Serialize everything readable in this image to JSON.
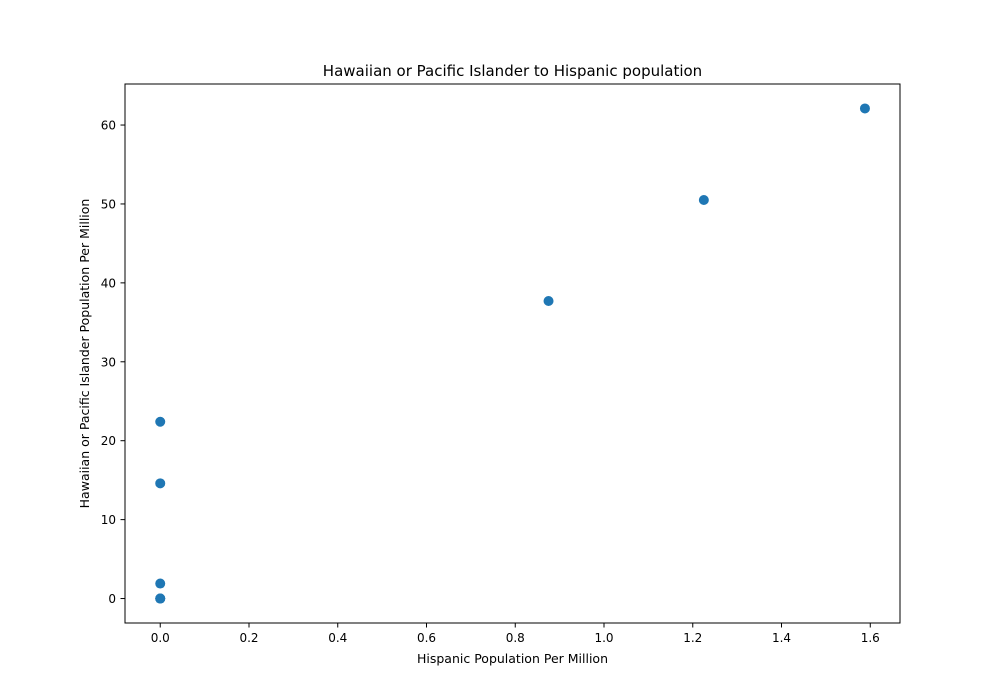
{
  "chart_data": {
    "type": "scatter",
    "title": "Hawaiian or Pacific Islander to Hispanic population",
    "xlabel": "Hispanic Population Per Million",
    "ylabel": "Hawaiian or Pacific Islander Population Per Million",
    "xlim": [
      -0.0794,
      1.667
    ],
    "ylim": [
      -3.1,
      65.2
    ],
    "xticks": [
      "0.0",
      "0.2",
      "0.4",
      "0.6",
      "0.8",
      "1.0",
      "1.2",
      "1.4",
      "1.6"
    ],
    "yticks": [
      "0",
      "10",
      "20",
      "30",
      "40",
      "50",
      "60"
    ],
    "grid": false,
    "legend": "none",
    "marker_color": "#1f77b4",
    "points": [
      {
        "x": 0.0,
        "y": 0.0
      },
      {
        "x": 0.0,
        "y": 0.0
      },
      {
        "x": 0.0,
        "y": 0.0
      },
      {
        "x": 0.0,
        "y": 1.9
      },
      {
        "x": 0.0,
        "y": 14.6
      },
      {
        "x": 0.0,
        "y": 22.4
      },
      {
        "x": 0.875,
        "y": 37.7
      },
      {
        "x": 1.225,
        "y": 50.5
      },
      {
        "x": 1.588,
        "y": 62.1
      }
    ]
  }
}
